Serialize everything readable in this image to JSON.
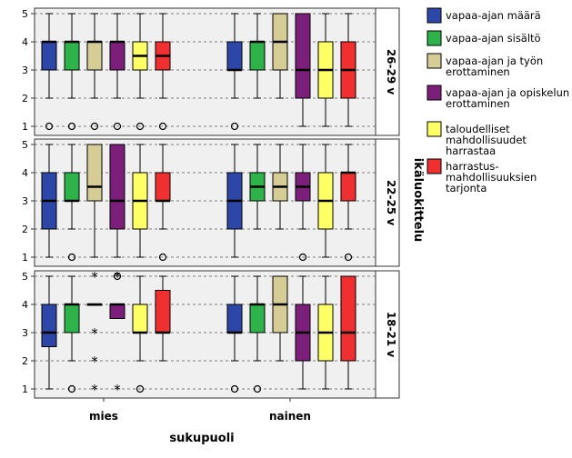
{
  "chart_data": {
    "type": "boxplot",
    "x_axis": {
      "title": "sukupuoli",
      "categories": [
        "mies",
        "nainen"
      ]
    },
    "panel_axis_title": "ikäluokittelu",
    "y_axis": {
      "range": [
        1,
        5
      ],
      "ticks": [
        "1",
        "2",
        "3",
        "4",
        "5"
      ]
    },
    "grid": "dashed horizontal",
    "legend_position": "right",
    "series": [
      {
        "id": "s1",
        "name": "vapaa-ajan määrä",
        "color": "#2c47a8"
      },
      {
        "id": "s2",
        "name": "vapaa-ajan sisältö",
        "color": "#2db34a"
      },
      {
        "id": "s3",
        "name": "vapaa-ajan ja työn erottaminen",
        "color": "#d6cc96"
      },
      {
        "id": "s4",
        "name": "vapaa-ajan ja opiskelun erottaminen",
        "color": "#7b1f7b"
      },
      {
        "id": "s5",
        "name": "taloudelliset mahdollisuudet harrastaa",
        "color": "#ffff66"
      },
      {
        "id": "s6",
        "name": "harrastus-mahdollisuuksien tarjonta",
        "color": "#f03030"
      }
    ],
    "legend_lines": [
      [
        "vapaa-ajan määrä"
      ],
      [
        "vapaa-ajan sisältö"
      ],
      [
        "vapaa-ajan ja työn",
        "erottaminen"
      ],
      [
        "vapaa-ajan ja opiskelun",
        "erottaminen"
      ],
      [
        "taloudelliset",
        "mahdollisuudet",
        "harrastaa"
      ],
      [
        "harrastus-",
        "mahdollisuuksien",
        "tarjonta"
      ]
    ],
    "panels": [
      {
        "label": "26-29 v",
        "groups": [
          {
            "category": "mies",
            "boxes": [
              {
                "series": "s1",
                "min": 2,
                "q1": 3,
                "median": 4,
                "q3": 4,
                "max": 5,
                "outliers": [
                  1
                ],
                "extremes": []
              },
              {
                "series": "s2",
                "min": 2,
                "q1": 3,
                "median": 4,
                "q3": 4,
                "max": 5,
                "outliers": [
                  1
                ],
                "extremes": []
              },
              {
                "series": "s3",
                "min": 2,
                "q1": 3,
                "median": 4,
                "q3": 4,
                "max": 5,
                "outliers": [
                  1
                ],
                "extremes": []
              },
              {
                "series": "s4",
                "min": 2,
                "q1": 3,
                "median": 4,
                "q3": 4,
                "max": 5,
                "outliers": [
                  1
                ],
                "extremes": []
              },
              {
                "series": "s5",
                "min": 2,
                "q1": 3,
                "median": 3.5,
                "q3": 4,
                "max": 5,
                "outliers": [
                  1
                ],
                "extremes": []
              },
              {
                "series": "s6",
                "min": 2,
                "q1": 3,
                "median": 3.5,
                "q3": 4,
                "max": 5,
                "outliers": [
                  1
                ],
                "extremes": []
              }
            ]
          },
          {
            "category": "nainen",
            "boxes": [
              {
                "series": "s1",
                "min": 2,
                "q1": 3,
                "median": 3,
                "q3": 4,
                "max": 5,
                "outliers": [
                  1
                ],
                "extremes": []
              },
              {
                "series": "s2",
                "min": 2,
                "q1": 3,
                "median": 4,
                "q3": 4,
                "max": 5,
                "outliers": [],
                "extremes": []
              },
              {
                "series": "s3",
                "min": 2,
                "q1": 3,
                "median": 4,
                "q3": 5,
                "max": 5,
                "outliers": [],
                "extremes": []
              },
              {
                "series": "s4",
                "min": 1,
                "q1": 2,
                "median": 3,
                "q3": 5,
                "max": 5,
                "outliers": [],
                "extremes": []
              },
              {
                "series": "s5",
                "min": 1,
                "q1": 2,
                "median": 3,
                "q3": 4,
                "max": 5,
                "outliers": [],
                "extremes": []
              },
              {
                "series": "s6",
                "min": 1,
                "q1": 2,
                "median": 3,
                "q3": 4,
                "max": 5,
                "outliers": [],
                "extremes": []
              }
            ]
          }
        ]
      },
      {
        "label": "22-25 v",
        "groups": [
          {
            "category": "mies",
            "boxes": [
              {
                "series": "s1",
                "min": 1,
                "q1": 2,
                "median": 3,
                "q3": 4,
                "max": 5,
                "outliers": [],
                "extremes": []
              },
              {
                "series": "s2",
                "min": 2,
                "q1": 3,
                "median": 3,
                "q3": 4,
                "max": 5,
                "outliers": [
                  1
                ],
                "extremes": []
              },
              {
                "series": "s3",
                "min": 1,
                "q1": 3,
                "median": 3.5,
                "q3": 5,
                "max": 5,
                "outliers": [],
                "extremes": []
              },
              {
                "series": "s4",
                "min": 1,
                "q1": 2,
                "median": 3,
                "q3": 5,
                "max": 5,
                "outliers": [],
                "extremes": []
              },
              {
                "series": "s5",
                "min": 1,
                "q1": 2,
                "median": 3,
                "q3": 4,
                "max": 5,
                "outliers": [],
                "extremes": []
              },
              {
                "series": "s6",
                "min": 2,
                "q1": 3,
                "median": 3,
                "q3": 4,
                "max": 5,
                "outliers": [
                  1
                ],
                "extremes": []
              }
            ]
          },
          {
            "category": "nainen",
            "boxes": [
              {
                "series": "s1",
                "min": 1,
                "q1": 2,
                "median": 3,
                "q3": 4,
                "max": 5,
                "outliers": [],
                "extremes": []
              },
              {
                "series": "s2",
                "min": 2,
                "q1": 3,
                "median": 3.5,
                "q3": 4,
                "max": 5,
                "outliers": [],
                "extremes": []
              },
              {
                "series": "s3",
                "min": 2,
                "q1": 3,
                "median": 3.5,
                "q3": 4,
                "max": 5,
                "outliers": [],
                "extremes": []
              },
              {
                "series": "s4",
                "min": 2,
                "q1": 3,
                "median": 3.5,
                "q3": 4,
                "max": 5,
                "outliers": [
                  1
                ],
                "extremes": []
              },
              {
                "series": "s5",
                "min": 1,
                "q1": 2,
                "median": 3,
                "q3": 4,
                "max": 5,
                "outliers": [],
                "extremes": []
              },
              {
                "series": "s6",
                "min": 2,
                "q1": 3,
                "median": 4,
                "q3": 4,
                "max": 5,
                "outliers": [
                  1
                ],
                "extremes": []
              }
            ]
          }
        ]
      },
      {
        "label": "18-21 v",
        "groups": [
          {
            "category": "mies",
            "boxes": [
              {
                "series": "s1",
                "min": 1,
                "q1": 2.5,
                "median": 3,
                "q3": 4,
                "max": 5,
                "outliers": [],
                "extremes": []
              },
              {
                "series": "s2",
                "min": 2,
                "q1": 3,
                "median": 4,
                "q3": 4,
                "max": 5,
                "outliers": [
                  1
                ],
                "extremes": []
              },
              {
                "series": "s3",
                "min": 4,
                "q1": 4,
                "median": 4,
                "q3": 4,
                "max": 4,
                "outliers": [],
                "extremes": [
                  5,
                  3,
                  2,
                  1
                ]
              },
              {
                "series": "s4",
                "min": 3.5,
                "q1": 3.5,
                "median": 4,
                "q3": 4,
                "max": 4,
                "outliers": [
                  5
                ],
                "extremes": [
                  5,
                  1
                ]
              },
              {
                "series": "s5",
                "min": 2,
                "q1": 3,
                "median": 3,
                "q3": 4,
                "max": 5,
                "outliers": [
                  1
                ],
                "extremes": []
              },
              {
                "series": "s6",
                "min": 2,
                "q1": 3,
                "median": 3,
                "q3": 4.5,
                "max": 5,
                "outliers": [],
                "extremes": []
              }
            ]
          },
          {
            "category": "nainen",
            "boxes": [
              {
                "series": "s1",
                "min": 2,
                "q1": 3,
                "median": 3,
                "q3": 4,
                "max": 5,
                "outliers": [
                  1
                ],
                "extremes": []
              },
              {
                "series": "s2",
                "min": 2,
                "q1": 3,
                "median": 4,
                "q3": 4,
                "max": 5,
                "outliers": [
                  1
                ],
                "extremes": []
              },
              {
                "series": "s3",
                "min": 2,
                "q1": 3,
                "median": 4,
                "q3": 5,
                "max": 5,
                "outliers": [],
                "extremes": []
              },
              {
                "series": "s4",
                "min": 1,
                "q1": 2,
                "median": 3,
                "q3": 4,
                "max": 5,
                "outliers": [],
                "extremes": []
              },
              {
                "series": "s5",
                "min": 1,
                "q1": 2,
                "median": 3,
                "q3": 4,
                "max": 5,
                "outliers": [],
                "extremes": []
              },
              {
                "series": "s6",
                "min": 1,
                "q1": 2,
                "median": 3,
                "q3": 5,
                "max": 5,
                "outliers": [],
                "extremes": []
              }
            ]
          }
        ]
      }
    ]
  }
}
